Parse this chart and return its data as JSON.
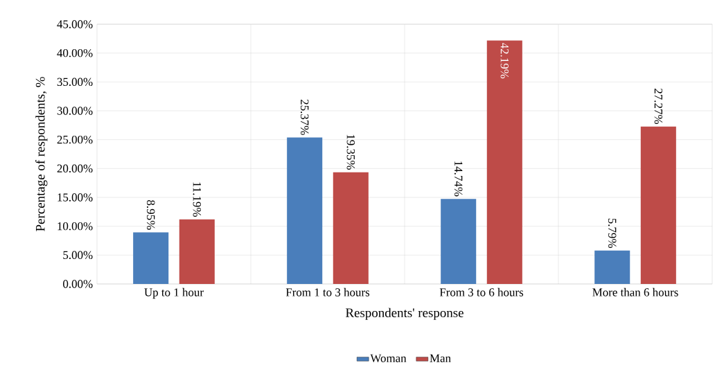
{
  "chart_data": {
    "type": "bar",
    "xlabel": "Respondents' response",
    "ylabel": "Percentage of respondents, %",
    "categories": [
      "Up to 1 hour",
      "From 1 to 3 hours",
      "From 3 to 6 hours",
      "More than 6 hours"
    ],
    "series": [
      {
        "name": "Woman",
        "color": "#4a7ebb",
        "values": [
          8.95,
          25.37,
          14.74,
          5.79
        ],
        "value_labels": [
          "8.95%",
          "25.37%",
          "14.74%",
          "5.79%"
        ]
      },
      {
        "name": "Man",
        "color": "#be4b48",
        "values": [
          11.19,
          19.35,
          42.19,
          27.27
        ],
        "value_labels": [
          "11.19%",
          "19.35%",
          "42.19%",
          "27.27%"
        ]
      }
    ],
    "ylim": [
      0,
      45
    ],
    "yticks": [
      {
        "value": 0,
        "label": "0.00%"
      },
      {
        "value": 5,
        "label": "5.00%"
      },
      {
        "value": 10,
        "label": "10.00%"
      },
      {
        "value": 15,
        "label": "15.00%"
      },
      {
        "value": 20,
        "label": "20.00%"
      },
      {
        "value": 25,
        "label": "25.00%"
      },
      {
        "value": 30,
        "label": "30.00%"
      },
      {
        "value": 35,
        "label": "35.00%"
      },
      {
        "value": 40,
        "label": "40.00%"
      },
      {
        "value": 45,
        "label": "45.00%"
      }
    ],
    "grid": true,
    "legend": "bottom"
  }
}
